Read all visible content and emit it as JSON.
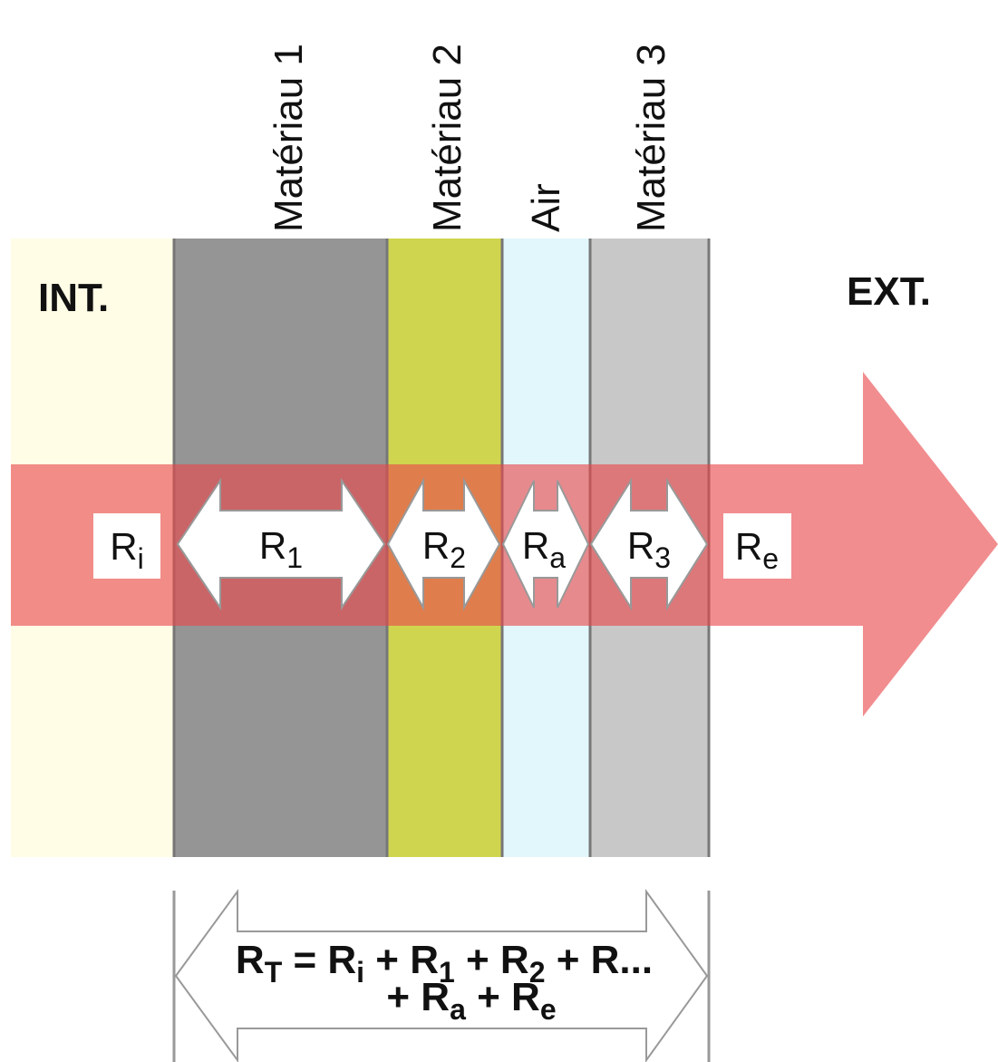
{
  "zones": {
    "interior": "INT.",
    "exterior": "EXT."
  },
  "layers": [
    {
      "name": "Matériau 1",
      "color": "#959595"
    },
    {
      "name": "Matériau 2",
      "color": "#d0d54f"
    },
    {
      "name": "Air",
      "color": "#e1f7fb"
    },
    {
      "name": "Matériau 3",
      "color": "#c8c8c8"
    }
  ],
  "colors": {
    "interior": "#fffde6",
    "heat_flow_arrow": "#e8474a",
    "layer_border": "#777777"
  },
  "resistances": {
    "interior": {
      "base": "R",
      "sub": "i"
    },
    "layer1": {
      "base": "R",
      "sub": "1"
    },
    "layer2": {
      "base": "R",
      "sub": "2"
    },
    "air": {
      "base": "R",
      "sub": "a"
    },
    "layer3": {
      "base": "R",
      "sub": "3"
    },
    "exterior": {
      "base": "R",
      "sub": "e"
    }
  },
  "formula": {
    "line1": [
      {
        "t": "R"
      },
      {
        "s": "T"
      },
      {
        "t": " = R"
      },
      {
        "s": "i"
      },
      {
        "t": " + R"
      },
      {
        "s": "1"
      },
      {
        "t": " + R"
      },
      {
        "s": "2"
      },
      {
        "t": " + R..."
      }
    ],
    "line2": [
      {
        "t": "+ R"
      },
      {
        "s": "a"
      },
      {
        "t": " + R"
      },
      {
        "s": "e"
      }
    ]
  }
}
